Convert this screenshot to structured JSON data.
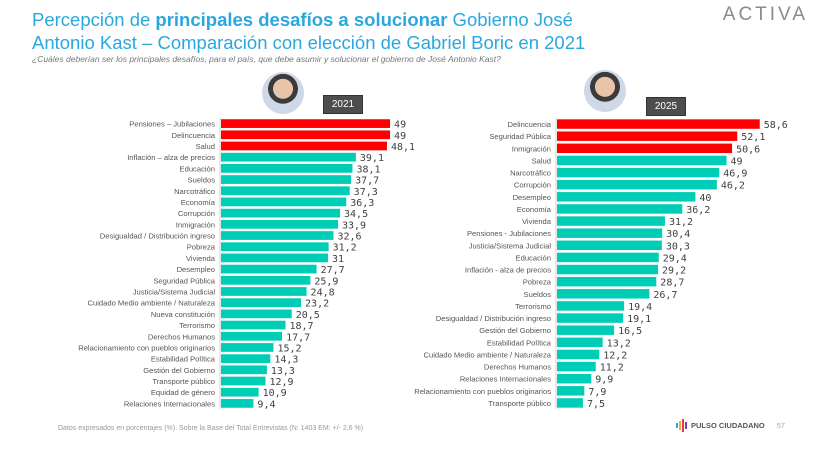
{
  "header": {
    "title_pre": "Percepción de ",
    "title_bold": "principales desafíos a solucionar",
    "title_post": " Gobierno José Antonio Kast – Comparación con elección de Gabriel Boric en 2021",
    "logo": "ACTIVA",
    "question": "¿Cuáles deberían ser los principales desafíos, para el país, que debe asumir y solucionar el gobierno de José Antonio Kast?"
  },
  "footer": {
    "note": "Datos expresados en porcentajes (%). Sobre la Base del Total Entrevistas (N: 1403  EM: +/- 2,6 %)",
    "brand": "PULSO CIUDADANO",
    "page": "57"
  },
  "colors": {
    "highlight": "#ff0000",
    "bar": "#00cdb5",
    "title": "#29a8e0"
  },
  "chart_data": [
    {
      "type": "bar",
      "orientation": "horizontal",
      "title": "2021",
      "highlight_top": 3,
      "categories": [
        "Pensiones – Jubilaciones",
        "Delincuencia",
        "Salud",
        "Inflación – alza de precios",
        "Educación",
        "Sueldos",
        "Narcotráfico",
        "Economía",
        "Corrupción",
        "Inmigración",
        "Desigualdad / Distribución ingreso",
        "Pobreza",
        "Vivienda",
        "Desempleo",
        "Seguridad Pública",
        "Justicia/Sistema Judicial",
        "Cuidado Medio ambiente / Naturaleza",
        "Nueva constitución",
        "Terrorismo",
        "Derechos Humanos",
        "Relacionamiento con pueblos originarios",
        "Estabilidad Política",
        "Gestión del Gobierno",
        "Transporte público",
        "Equidad de género",
        "Relaciones Internacionales"
      ],
      "values": [
        49,
        49,
        48.1,
        39.1,
        38.1,
        37.7,
        37.3,
        36.3,
        34.5,
        33.9,
        32.6,
        31.2,
        31,
        27.7,
        25.9,
        24.8,
        23.2,
        20.5,
        18.7,
        17.7,
        15.2,
        14.3,
        13.3,
        12.9,
        10.9,
        9.4
      ],
      "labels": [
        "49",
        "49",
        "48,1",
        "39,1",
        "38,1",
        "37,7",
        "37,3",
        "36,3",
        "34,5",
        "33,9",
        "32,6",
        "31,2",
        "31",
        "27,7",
        "25,9",
        "24,8",
        "23,2",
        "20,5",
        "18,7",
        "17,7",
        "15,2",
        "14,3",
        "13,3",
        "12,9",
        "10,9",
        "9,4"
      ]
    },
    {
      "type": "bar",
      "orientation": "horizontal",
      "title": "2025",
      "highlight_top": 3,
      "categories": [
        "Delincuencia",
        "Seguridad Pública",
        "Inmigración",
        "Salud",
        "Narcotráfico",
        "Corrupción",
        "Desempleo",
        "Economía",
        "Vivienda",
        "Pensiones - Jubilaciones",
        "Justicia/Sistema Judicial",
        "Educación",
        "Inflación - alza de precios",
        "Pobreza",
        "Sueldos",
        "Terrorismo",
        "Desigualdad / Distribución ingreso",
        "Gestión del Gobierno",
        "Estabilidad Política",
        "Cuidado Medio ambiente / Naturaleza",
        "Derechos Humanos",
        "Relaciones Internacionales",
        "Relacionamiento con pueblos originarios",
        "Transporte público"
      ],
      "values": [
        58.6,
        52.1,
        50.6,
        49,
        46.9,
        46.2,
        40,
        36.2,
        31.2,
        30.4,
        30.3,
        29.4,
        29.2,
        28.7,
        26.7,
        19.4,
        19.1,
        16.5,
        13.2,
        12.2,
        11.2,
        9.9,
        7.9,
        7.5
      ],
      "labels": [
        "58,6",
        "52,1",
        "50,6",
        "49",
        "46,9",
        "46,2",
        "40",
        "36,2",
        "31,2",
        "30,4",
        "30,3",
        "29,4",
        "29,2",
        "28,7",
        "26,7",
        "19,4",
        "19,1",
        "16,5",
        "13,2",
        "12,2",
        "11,2",
        "9,9",
        "7,9",
        "7,5"
      ]
    }
  ]
}
